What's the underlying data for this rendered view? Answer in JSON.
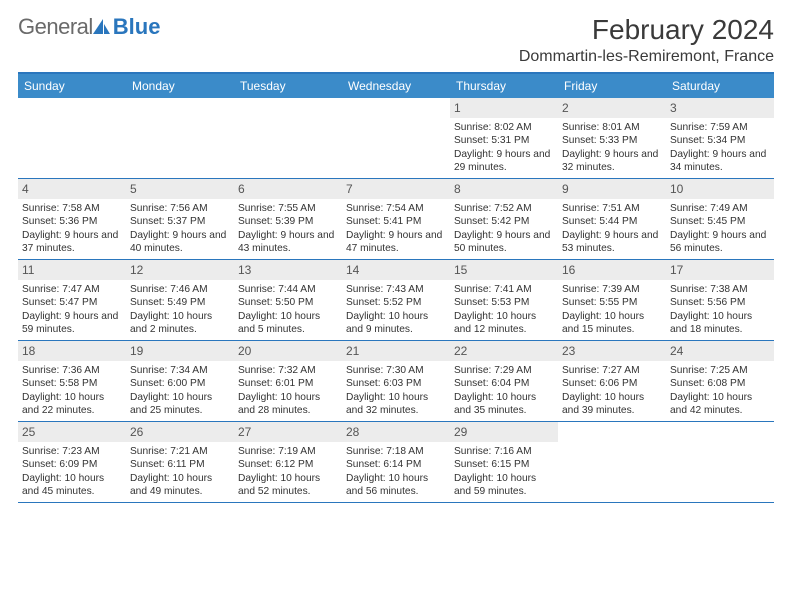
{
  "brand": {
    "part1": "General",
    "part2": "Blue"
  },
  "title": "February 2024",
  "location": "Dommartin-les-Remiremont, France",
  "colors": {
    "header_bar": "#3b8bc9",
    "rule": "#2a76bd",
    "daynum_bg": "#ececec"
  },
  "days_of_week": [
    "Sunday",
    "Monday",
    "Tuesday",
    "Wednesday",
    "Thursday",
    "Friday",
    "Saturday"
  ],
  "weeks": [
    [
      {
        "empty": true
      },
      {
        "empty": true
      },
      {
        "empty": true
      },
      {
        "empty": true
      },
      {
        "num": "1",
        "sunrise": "8:02 AM",
        "sunset": "5:31 PM",
        "daylight": "9 hours and 29 minutes."
      },
      {
        "num": "2",
        "sunrise": "8:01 AM",
        "sunset": "5:33 PM",
        "daylight": "9 hours and 32 minutes."
      },
      {
        "num": "3",
        "sunrise": "7:59 AM",
        "sunset": "5:34 PM",
        "daylight": "9 hours and 34 minutes."
      }
    ],
    [
      {
        "num": "4",
        "sunrise": "7:58 AM",
        "sunset": "5:36 PM",
        "daylight": "9 hours and 37 minutes."
      },
      {
        "num": "5",
        "sunrise": "7:56 AM",
        "sunset": "5:37 PM",
        "daylight": "9 hours and 40 minutes."
      },
      {
        "num": "6",
        "sunrise": "7:55 AM",
        "sunset": "5:39 PM",
        "daylight": "9 hours and 43 minutes."
      },
      {
        "num": "7",
        "sunrise": "7:54 AM",
        "sunset": "5:41 PM",
        "daylight": "9 hours and 47 minutes."
      },
      {
        "num": "8",
        "sunrise": "7:52 AM",
        "sunset": "5:42 PM",
        "daylight": "9 hours and 50 minutes."
      },
      {
        "num": "9",
        "sunrise": "7:51 AM",
        "sunset": "5:44 PM",
        "daylight": "9 hours and 53 minutes."
      },
      {
        "num": "10",
        "sunrise": "7:49 AM",
        "sunset": "5:45 PM",
        "daylight": "9 hours and 56 minutes."
      }
    ],
    [
      {
        "num": "11",
        "sunrise": "7:47 AM",
        "sunset": "5:47 PM",
        "daylight": "9 hours and 59 minutes."
      },
      {
        "num": "12",
        "sunrise": "7:46 AM",
        "sunset": "5:49 PM",
        "daylight": "10 hours and 2 minutes."
      },
      {
        "num": "13",
        "sunrise": "7:44 AM",
        "sunset": "5:50 PM",
        "daylight": "10 hours and 5 minutes."
      },
      {
        "num": "14",
        "sunrise": "7:43 AM",
        "sunset": "5:52 PM",
        "daylight": "10 hours and 9 minutes."
      },
      {
        "num": "15",
        "sunrise": "7:41 AM",
        "sunset": "5:53 PM",
        "daylight": "10 hours and 12 minutes."
      },
      {
        "num": "16",
        "sunrise": "7:39 AM",
        "sunset": "5:55 PM",
        "daylight": "10 hours and 15 minutes."
      },
      {
        "num": "17",
        "sunrise": "7:38 AM",
        "sunset": "5:56 PM",
        "daylight": "10 hours and 18 minutes."
      }
    ],
    [
      {
        "num": "18",
        "sunrise": "7:36 AM",
        "sunset": "5:58 PM",
        "daylight": "10 hours and 22 minutes."
      },
      {
        "num": "19",
        "sunrise": "7:34 AM",
        "sunset": "6:00 PM",
        "daylight": "10 hours and 25 minutes."
      },
      {
        "num": "20",
        "sunrise": "7:32 AM",
        "sunset": "6:01 PM",
        "daylight": "10 hours and 28 minutes."
      },
      {
        "num": "21",
        "sunrise": "7:30 AM",
        "sunset": "6:03 PM",
        "daylight": "10 hours and 32 minutes."
      },
      {
        "num": "22",
        "sunrise": "7:29 AM",
        "sunset": "6:04 PM",
        "daylight": "10 hours and 35 minutes."
      },
      {
        "num": "23",
        "sunrise": "7:27 AM",
        "sunset": "6:06 PM",
        "daylight": "10 hours and 39 minutes."
      },
      {
        "num": "24",
        "sunrise": "7:25 AM",
        "sunset": "6:08 PM",
        "daylight": "10 hours and 42 minutes."
      }
    ],
    [
      {
        "num": "25",
        "sunrise": "7:23 AM",
        "sunset": "6:09 PM",
        "daylight": "10 hours and 45 minutes."
      },
      {
        "num": "26",
        "sunrise": "7:21 AM",
        "sunset": "6:11 PM",
        "daylight": "10 hours and 49 minutes."
      },
      {
        "num": "27",
        "sunrise": "7:19 AM",
        "sunset": "6:12 PM",
        "daylight": "10 hours and 52 minutes."
      },
      {
        "num": "28",
        "sunrise": "7:18 AM",
        "sunset": "6:14 PM",
        "daylight": "10 hours and 56 minutes."
      },
      {
        "num": "29",
        "sunrise": "7:16 AM",
        "sunset": "6:15 PM",
        "daylight": "10 hours and 59 minutes."
      },
      {
        "empty": true
      },
      {
        "empty": true
      }
    ]
  ],
  "labels": {
    "sunrise": "Sunrise:",
    "sunset": "Sunset:",
    "daylight": "Daylight:"
  }
}
